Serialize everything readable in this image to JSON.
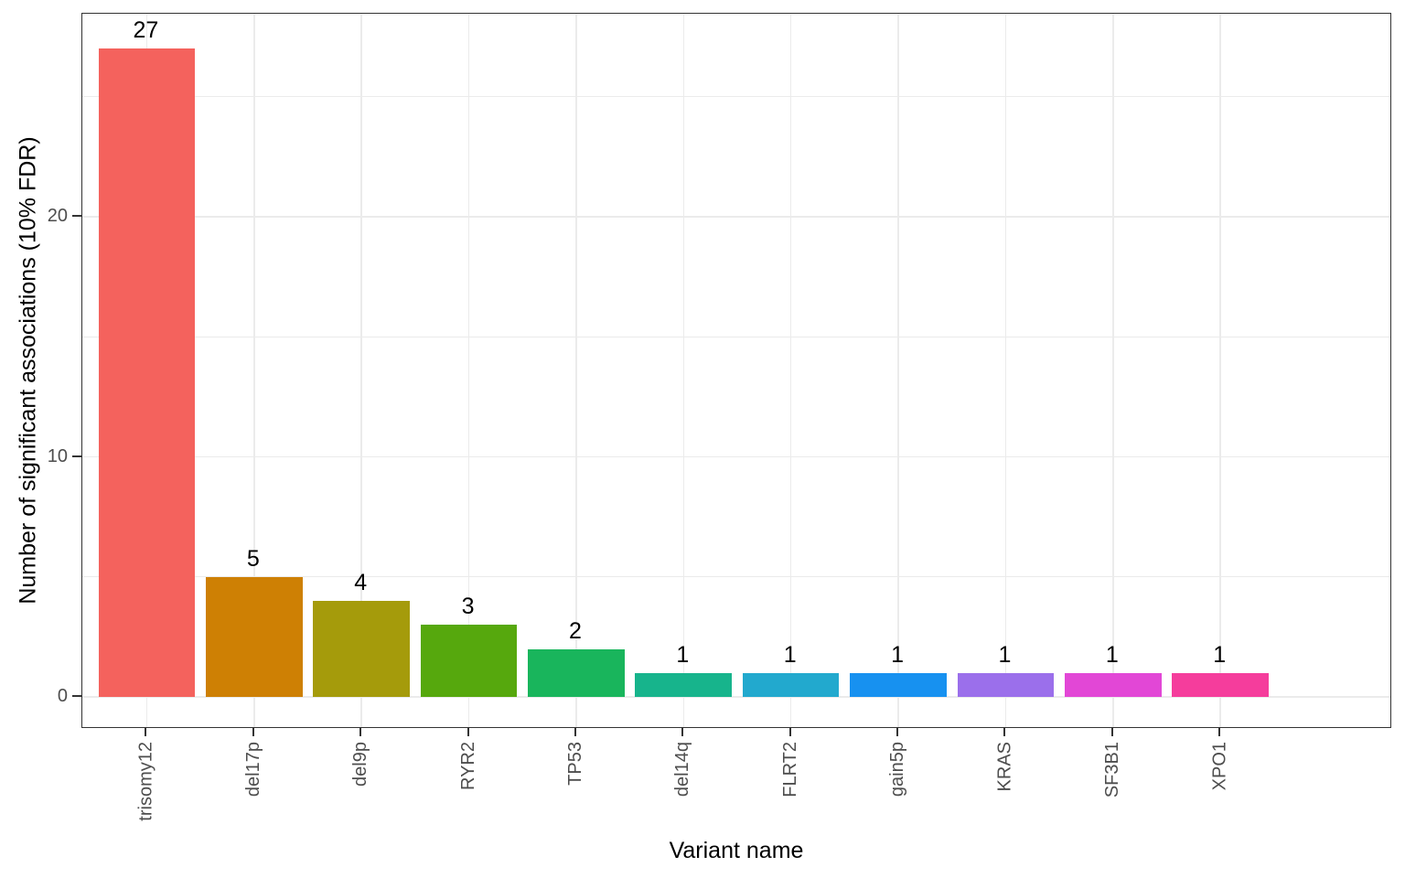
{
  "chart_data": {
    "type": "bar",
    "title": "",
    "xlabel": "Variant name",
    "ylabel": "Number of significant associations (10% FDR)",
    "categories": [
      "trisomy12",
      "del17p",
      "del9p",
      "RYR2",
      "TP53",
      "del14q",
      "FLRT2",
      "gain5p",
      "KRAS",
      "SF3B1",
      "XPO1"
    ],
    "values": [
      27,
      5,
      4,
      3,
      2,
      1,
      1,
      1,
      1,
      1,
      1
    ],
    "bar_value_labels": [
      "27",
      "5",
      "4",
      "3",
      "2",
      "1",
      "1",
      "1",
      "1",
      "1",
      "1"
    ],
    "bar_colors": [
      "#F4625D",
      "#CE8004",
      "#A59B0B",
      "#56A80D",
      "#19B55C",
      "#17B48C",
      "#22A9CE",
      "#1791F0",
      "#9B6FEB",
      "#E247D6",
      "#F53D9C"
    ],
    "ylim": [
      0,
      28.35
    ],
    "y_major_ticks": [
      0,
      10,
      20
    ],
    "y_major_tick_labels": [
      "0",
      "10",
      "20"
    ],
    "y_minor_gridlines": [
      5,
      15,
      25
    ],
    "x_tick_rotation_degrees": 90,
    "grid": "horizontal major+minor light gray, vertical at category centers",
    "legend": "none",
    "theme": {
      "panel_background": "#ffffff",
      "panel_border": "#333333",
      "gridline_color": "#ebebeb",
      "axis_text_color": "#4d4d4d",
      "axis_title_color": "#000000",
      "tick_color": "#333333",
      "bar_label_color": "#000000"
    }
  }
}
